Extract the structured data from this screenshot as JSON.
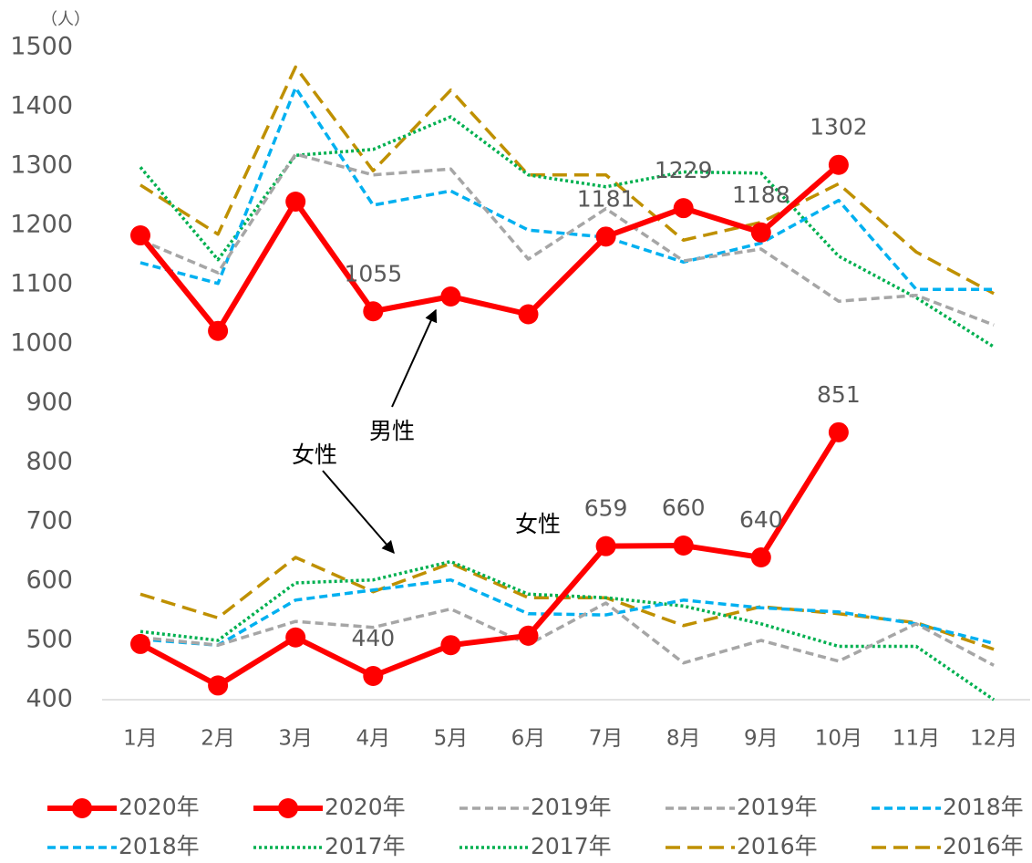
{
  "chart_data": {
    "type": "line",
    "y_unit": "（人）",
    "annotations": [
      "男性",
      "女性",
      "女性"
    ],
    "categories": [
      "1月",
      "2月",
      "3月",
      "4月",
      "5月",
      "6月",
      "7月",
      "8月",
      "9月",
      "10月",
      "11月",
      "12月"
    ],
    "ylim": [
      400,
      1500
    ],
    "yticks": [
      400,
      500,
      600,
      700,
      800,
      900,
      1000,
      1100,
      1200,
      1300,
      1400,
      1500
    ],
    "grid": false,
    "legend": "bottom",
    "series": [
      {
        "name": "2020年",
        "color": "#ff0000",
        "line_style": "solid",
        "marker": "circle",
        "values": [
          1183,
          1022,
          1240,
          1055,
          1080,
          1050,
          1181,
          1229,
          1188,
          1302,
          null,
          null
        ],
        "value_labels": [
          null,
          null,
          null,
          "1055",
          null,
          null,
          "1181",
          "1229",
          "1188",
          "1302",
          null,
          null
        ]
      },
      {
        "name": "2020年",
        "color": "#ff0000",
        "line_style": "solid",
        "marker": "circle",
        "values": [
          494,
          424,
          505,
          440,
          492,
          508,
          659,
          660,
          640,
          851,
          null,
          null
        ],
        "value_labels": [
          null,
          null,
          null,
          "440",
          null,
          null,
          "659",
          "660",
          "640",
          "851",
          null,
          null
        ]
      },
      {
        "name": "2019年",
        "color": "#a6a6a6",
        "line_style": "dash",
        "values": [
          1175,
          1120,
          1320,
          1285,
          1295,
          1143,
          1228,
          1140,
          1160,
          1072,
          1082,
          1032
        ]
      },
      {
        "name": "2019年",
        "color": "#a6a6a6",
        "line_style": "dash",
        "values": [
          505,
          492,
          532,
          522,
          553,
          493,
          563,
          462,
          500,
          465,
          528,
          458
        ]
      },
      {
        "name": "2018年",
        "color": "#00b0f0",
        "line_style": "dash",
        "values": [
          1137,
          1102,
          1432,
          1234,
          1258,
          1192,
          1180,
          1138,
          1170,
          1242,
          1092,
          1092
        ]
      },
      {
        "name": "2018年",
        "color": "#00b0f0",
        "line_style": "dash",
        "values": [
          502,
          492,
          568,
          585,
          602,
          545,
          543,
          568,
          555,
          548,
          528,
          495
        ]
      },
      {
        "name": "2017年",
        "color": "#00b050",
        "line_style": "dot",
        "values": [
          1298,
          1142,
          1318,
          1328,
          1383,
          1285,
          1265,
          1290,
          1288,
          1148,
          1078,
          995
        ]
      },
      {
        "name": "2017年",
        "color": "#00b050",
        "line_style": "dot",
        "values": [
          515,
          500,
          597,
          602,
          633,
          578,
          572,
          558,
          528,
          490,
          490,
          400
        ]
      },
      {
        "name": "2016年",
        "color": "#bf9000",
        "line_style": "long-dash",
        "values": [
          1268,
          1185,
          1467,
          1292,
          1428,
          1285,
          1285,
          1175,
          1205,
          1270,
          1155,
          1085
        ]
      },
      {
        "name": "2016年",
        "color": "#bf9000",
        "line_style": "long-dash",
        "values": [
          578,
          538,
          640,
          582,
          630,
          572,
          572,
          525,
          557,
          545,
          530,
          485
        ]
      }
    ]
  }
}
